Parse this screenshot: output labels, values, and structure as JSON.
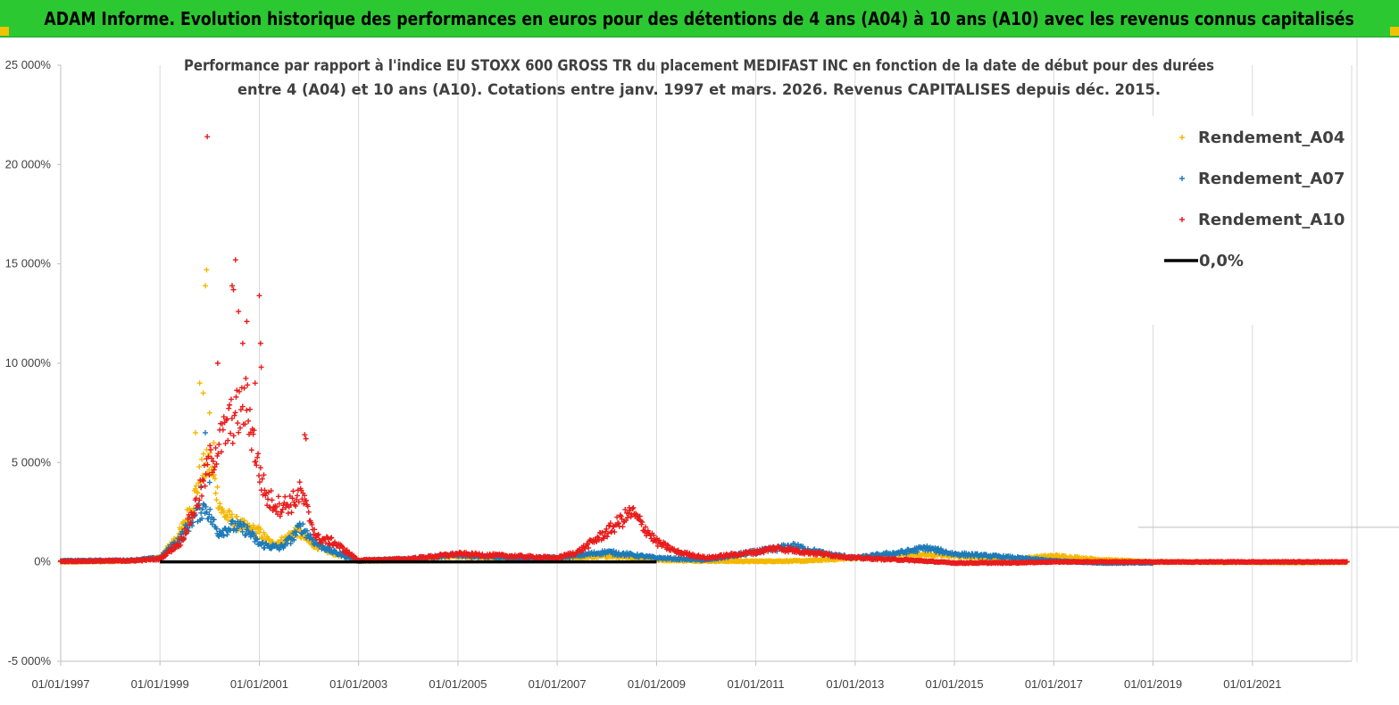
{
  "header": {
    "title": "ADAM Informe. Evolution historique des performances en euros pour des détentions de 4 ans (A04) à 10 ans (A10) avec les revenus connus capitalisés"
  },
  "chart_data": {
    "type": "scatter",
    "title_lines": [
      "Performance par rapport à l'indice EU STOXX 600 GROSS TR  du placement MEDIFAST INC en fonction de la date de début pour des durées",
      "entre 4 (A04) et 10 ans (A10). Cotations entre janv. 1997 et mars. 2026. Revenus CAPITALISES depuis déc. 2015."
    ],
    "xlabel": "",
    "ylabel": "",
    "x_axis": {
      "min": "1997-01-01",
      "max": "2023-01-01",
      "tick_labels": [
        "01/01/1997",
        "01/01/1999",
        "01/01/2001",
        "01/01/2003",
        "01/01/2005",
        "01/01/2007",
        "01/01/2009",
        "01/01/2011",
        "01/01/2013",
        "01/01/2015",
        "01/01/2017",
        "01/01/2019",
        "01/01/2021"
      ],
      "tick_dates": [
        "1997-01-01",
        "1999-01-01",
        "2001-01-01",
        "2003-01-01",
        "2005-01-01",
        "2007-01-01",
        "2009-01-01",
        "2011-01-01",
        "2013-01-01",
        "2015-01-01",
        "2017-01-01",
        "2019-01-01",
        "2021-01-01"
      ]
    },
    "y_axis": {
      "min": -5000,
      "max": 25000,
      "tick_values": [
        -5000,
        0,
        5000,
        10000,
        15000,
        20000,
        25000
      ],
      "tick_labels": [
        "-5 000%",
        "0%",
        "5 000%",
        "10 000%",
        "15 000%",
        "20 000%",
        "25 000%"
      ]
    },
    "grid": "vertical",
    "legend_position": "top-right",
    "colors": {
      "A04": "#f5b800",
      "A07": "#1e7ab8",
      "A10": "#e81c1c",
      "zero": "#000000"
    },
    "series": [
      {
        "name": "Rendement_A04",
        "key": "A04",
        "marker": "+",
        "trend": [
          [
            "1997-01-01",
            0
          ],
          [
            "1998-06-01",
            50
          ],
          [
            "1999-01-01",
            200
          ],
          [
            "1999-06-01",
            1500
          ],
          [
            "1999-09-01",
            3000
          ],
          [
            "1999-11-01",
            4500
          ],
          [
            "2000-01-01",
            5000
          ],
          [
            "2000-04-01",
            2500
          ],
          [
            "2000-07-01",
            2000
          ],
          [
            "2000-10-01",
            1700
          ],
          [
            "2001-01-01",
            1500
          ],
          [
            "2001-04-01",
            900
          ],
          [
            "2001-07-01",
            1100
          ],
          [
            "2001-10-01",
            1600
          ],
          [
            "2002-01-01",
            1000
          ],
          [
            "2002-06-01",
            500
          ],
          [
            "2003-01-01",
            50
          ],
          [
            "2004-01-01",
            100
          ],
          [
            "2005-01-01",
            300
          ],
          [
            "2006-01-01",
            150
          ],
          [
            "2007-01-01",
            150
          ],
          [
            "2008-01-01",
            300
          ],
          [
            "2009-01-01",
            100
          ],
          [
            "2010-01-01",
            50
          ],
          [
            "2011-01-01",
            30
          ],
          [
            "2012-01-01",
            50
          ],
          [
            "2013-01-01",
            200
          ],
          [
            "2014-01-01",
            400
          ],
          [
            "2015-01-01",
            300
          ],
          [
            "2016-01-01",
            100
          ],
          [
            "2017-01-01",
            300
          ],
          [
            "2018-01-01",
            100
          ],
          [
            "2019-01-01",
            0
          ],
          [
            "2022-01-01",
            -30
          ],
          [
            "2022-12-01",
            -10
          ]
        ],
        "peaks": [
          [
            "1999-12-10",
            14700
          ],
          [
            "1999-12-01",
            13900
          ],
          [
            "1999-10-20",
            9000
          ],
          [
            "1999-11-15",
            8500
          ],
          [
            "2000-01-01",
            7500
          ],
          [
            "1999-09-20",
            6500
          ],
          [
            "2000-02-01",
            6000
          ]
        ]
      },
      {
        "name": "Rendement_A07",
        "key": "A07",
        "marker": "+",
        "trend": [
          [
            "1997-01-01",
            50
          ],
          [
            "1998-06-01",
            80
          ],
          [
            "1999-01-01",
            200
          ],
          [
            "1999-06-01",
            1200
          ],
          [
            "1999-09-01",
            2200
          ],
          [
            "1999-12-01",
            2800
          ],
          [
            "2000-03-01",
            1500
          ],
          [
            "2000-07-01",
            1800
          ],
          [
            "2000-10-01",
            1600
          ],
          [
            "2001-01-01",
            900
          ],
          [
            "2001-06-01",
            700
          ],
          [
            "2001-09-01",
            1200
          ],
          [
            "2001-11-01",
            1800
          ],
          [
            "2002-03-01",
            900
          ],
          [
            "2002-07-01",
            500
          ],
          [
            "2003-01-01",
            60
          ],
          [
            "2004-01-01",
            150
          ],
          [
            "2005-01-01",
            350
          ],
          [
            "2006-01-01",
            200
          ],
          [
            "2007-01-01",
            200
          ],
          [
            "2008-01-01",
            500
          ],
          [
            "2009-01-01",
            200
          ],
          [
            "2010-01-01",
            100
          ],
          [
            "2011-01-01",
            500
          ],
          [
            "2011-10-01",
            800
          ],
          [
            "2012-06-01",
            400
          ],
          [
            "2013-01-01",
            200
          ],
          [
            "2014-01-01",
            500
          ],
          [
            "2014-06-01",
            700
          ],
          [
            "2015-01-01",
            400
          ],
          [
            "2016-01-01",
            250
          ],
          [
            "2017-01-01",
            50
          ],
          [
            "2018-01-01",
            -50
          ],
          [
            "2019-01-01",
            -50
          ]
        ],
        "peaks": [
          [
            "2000-01-01",
            4000
          ],
          [
            "1999-12-01",
            6500
          ],
          [
            "1999-11-01",
            3800
          ]
        ]
      },
      {
        "name": "Rendement_A10",
        "key": "A10",
        "marker": "+",
        "trend": [
          [
            "1997-01-01",
            30
          ],
          [
            "1998-06-01",
            60
          ],
          [
            "1999-01-01",
            150
          ],
          [
            "1999-06-01",
            1000
          ],
          [
            "1999-10-01",
            3000
          ],
          [
            "2000-01-01",
            5000
          ],
          [
            "2000-06-01",
            7000
          ],
          [
            "2000-10-01",
            8000
          ],
          [
            "2001-01-01",
            4500
          ],
          [
            "2001-03-01",
            3200
          ],
          [
            "2001-06-01",
            2800
          ],
          [
            "2001-09-01",
            3000
          ],
          [
            "2001-11-01",
            3500
          ],
          [
            "2002-03-01",
            1200
          ],
          [
            "2002-07-01",
            1000
          ],
          [
            "2003-01-01",
            80
          ],
          [
            "2004-01-01",
            150
          ],
          [
            "2005-01-01",
            400
          ],
          [
            "2006-01-01",
            300
          ],
          [
            "2007-01-01",
            200
          ],
          [
            "2007-06-01",
            500
          ],
          [
            "2008-01-01",
            1500
          ],
          [
            "2008-07-01",
            2500
          ],
          [
            "2009-01-01",
            1000
          ],
          [
            "2009-06-01",
            500
          ],
          [
            "2010-01-01",
            200
          ],
          [
            "2011-01-01",
            500
          ],
          [
            "2011-06-01",
            700
          ],
          [
            "2012-01-01",
            500
          ],
          [
            "2013-01-01",
            200
          ],
          [
            "2014-01-01",
            100
          ],
          [
            "2015-01-01",
            -50
          ],
          [
            "2016-01-01",
            -50
          ],
          [
            "2017-01-01",
            0
          ],
          [
            "2019-01-01",
            0
          ],
          [
            "2022-12-01",
            0
          ]
        ],
        "peaks": [
          [
            "1999-12-15",
            21400
          ],
          [
            "2000-07-10",
            15200
          ],
          [
            "2000-06-15",
            13900
          ],
          [
            "2000-06-25",
            13700
          ],
          [
            "2001-01-01",
            13400
          ],
          [
            "2000-08-01",
            12600
          ],
          [
            "2001-01-10",
            11000
          ],
          [
            "2000-10-01",
            12100
          ],
          [
            "2001-01-15",
            9800
          ],
          [
            "2001-12-01",
            6400
          ],
          [
            "2001-12-10",
            6200
          ],
          [
            "2000-09-01",
            11000
          ],
          [
            "2000-12-01",
            9000
          ],
          [
            "2000-03-01",
            10000
          ]
        ]
      },
      {
        "name": "0,0%",
        "key": "zero",
        "marker": "line",
        "start": "1999-01-01",
        "end": "2009-01-01",
        "value": 0
      }
    ]
  }
}
